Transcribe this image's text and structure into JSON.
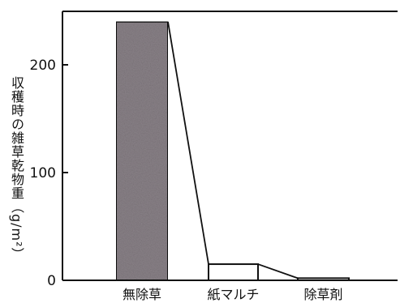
{
  "chart_data": {
    "type": "bar",
    "ylabel": "収穫時の雑草乾物重（g/m²）",
    "ylim": [
      0,
      250
    ],
    "yticks": [
      0,
      100,
      200
    ],
    "categories": [
      "無除草",
      "紙マルチ",
      "除草剤"
    ],
    "values": [
      240,
      15,
      2
    ],
    "bar_fills": [
      "#8a8288",
      "#ffffff",
      "#ffffff"
    ],
    "grid": false,
    "legend": "none"
  }
}
